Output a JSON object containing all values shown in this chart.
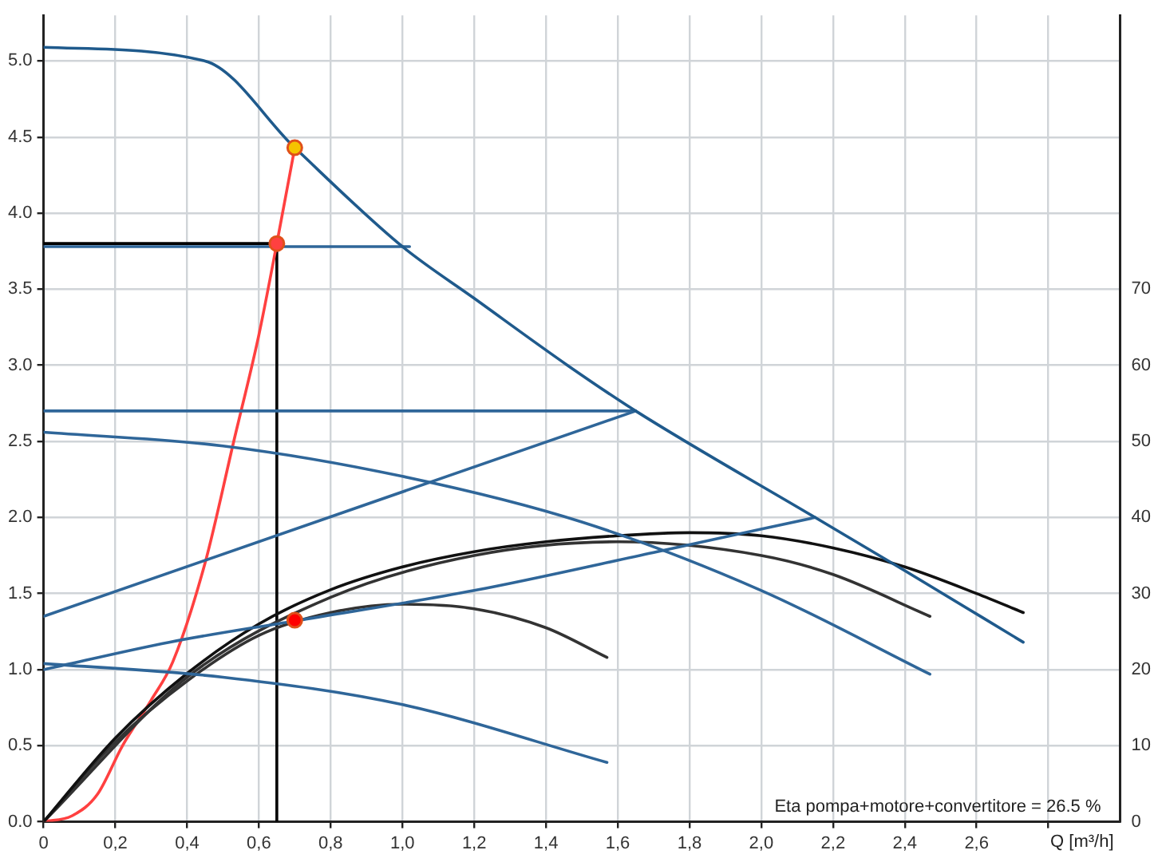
{
  "chart_data": {
    "type": "line",
    "xlabel": "Q [m³/h]",
    "annotations": [
      "Eta pompa+motore+convertitore = 26.5 %"
    ],
    "xlim": [
      0,
      3.0
    ],
    "ylim": [
      0,
      5.3
    ],
    "y2lim": [
      0,
      106
    ],
    "xticks": [
      {
        "value": 0,
        "label": "0"
      },
      {
        "value": 0.2,
        "label": "0,2"
      },
      {
        "value": 0.4,
        "label": "0,4"
      },
      {
        "value": 0.6,
        "label": "0,6"
      },
      {
        "value": 0.8,
        "label": "0,8"
      },
      {
        "value": 1.0,
        "label": "1,0"
      },
      {
        "value": 1.2,
        "label": "1,2"
      },
      {
        "value": 1.4,
        "label": "1,4"
      },
      {
        "value": 1.6,
        "label": "1,6"
      },
      {
        "value": 1.8,
        "label": "1,8"
      },
      {
        "value": 2.0,
        "label": "2,0"
      },
      {
        "value": 2.2,
        "label": "2,2"
      },
      {
        "value": 2.4,
        "label": "2,4"
      },
      {
        "value": 2.6,
        "label": "2,6"
      },
      {
        "value": 2.8,
        "label": null
      }
    ],
    "yticks": [
      {
        "value": 0,
        "label": "0.0"
      },
      0.5,
      {
        "value": 1,
        "label": "1.0"
      },
      1.5,
      {
        "value": 2,
        "label": "2.0"
      },
      2.5,
      {
        "value": 3,
        "label": "3.0"
      },
      3.5,
      {
        "value": 4,
        "label": "4.0"
      },
      4.5,
      {
        "value": 5,
        "label": "5.0"
      }
    ],
    "y2ticks": [
      0,
      10,
      20,
      30,
      40,
      50,
      60,
      70
    ],
    "grid": true,
    "legend": false,
    "series": [
      {
        "color": "#1f5a8c",
        "x": [
          0,
          0.45,
          0.7,
          1.0,
          1.2,
          1.46,
          1.65,
          2.15,
          2.4,
          2.73
        ],
        "values": [
          5.09,
          5.0,
          4.43,
          3.78,
          3.44,
          3.0,
          2.7,
          2.0,
          1.65,
          1.18
        ]
      },
      {
        "color": "#2f6699",
        "x": [
          0,
          1.02
        ],
        "values": [
          3.78,
          3.78
        ]
      },
      {
        "color": "#2f6699",
        "x": [
          0,
          1.65
        ],
        "values": [
          2.7,
          2.7
        ]
      },
      {
        "color": "#2f6699",
        "x": [
          0,
          1.65
        ],
        "values": [
          1.35,
          2.7
        ]
      },
      {
        "color": "#2f6699",
        "x": [
          0,
          0.35,
          0.7,
          1.2,
          1.7,
          2.15
        ],
        "values": [
          1.0,
          1.18,
          1.32,
          1.52,
          1.77,
          2.0
        ]
      },
      {
        "color": "#2f6699",
        "x": [
          0,
          0.5,
          1.0,
          1.5,
          2.0,
          2.47
        ],
        "values": [
          2.56,
          2.47,
          2.27,
          1.97,
          1.52,
          0.97
        ]
      },
      {
        "color": "#2f6699",
        "x": [
          0,
          0.5,
          1.0,
          1.57
        ],
        "values": [
          1.04,
          0.95,
          0.77,
          0.39
        ]
      },
      {
        "color": "#111111",
        "axis": "y2",
        "x": [
          0,
          0.2,
          0.4,
          0.6,
          0.8,
          1.0,
          1.2,
          1.4,
          1.6,
          1.8,
          2.0,
          2.2,
          2.4,
          2.6,
          2.73
        ],
        "values": [
          0,
          11,
          19.5,
          26,
          30.5,
          33.5,
          35.5,
          36.8,
          37.6,
          38,
          37.6,
          36,
          33.5,
          30,
          27.5
        ]
      },
      {
        "color": "#333333",
        "axis": "y2",
        "x": [
          0,
          0.4,
          0.8,
          1.2,
          1.6,
          2.0,
          2.2,
          2.47
        ],
        "values": [
          0,
          19,
          29.5,
          35,
          36.8,
          35,
          32.5,
          27
        ]
      },
      {
        "color": "#333333",
        "axis": "y2",
        "x": [
          0,
          0.2,
          0.4,
          0.6,
          0.8,
          1.0,
          1.2,
          1.4,
          1.57
        ],
        "values": [
          0,
          10.5,
          18.5,
          24.5,
          27.5,
          28.6,
          28,
          25.5,
          21.6
        ]
      },
      {
        "color": "#ff4040",
        "x": [
          0,
          0.08,
          0.15,
          0.22,
          0.3,
          0.36,
          0.45,
          0.53,
          0.6,
          0.65,
          0.7
        ],
        "values": [
          0,
          0.04,
          0.18,
          0.5,
          0.8,
          1.05,
          1.7,
          2.5,
          3.2,
          3.8,
          4.43
        ]
      },
      {
        "color": "#000000",
        "x": [
          0,
          0.65
        ],
        "values": [
          3.8,
          3.8
        ]
      },
      {
        "color": "#000000",
        "x": [
          0.65,
          0.65
        ],
        "values": [
          0,
          3.8
        ]
      },
      {
        "type": "scatter",
        "marker": "circle",
        "color": "#ff4040",
        "x": [
          0.65
        ],
        "values": [
          3.8
        ]
      },
      {
        "type": "scatter",
        "marker": "circle",
        "color": "#f5c400",
        "x": [
          0.7
        ],
        "values": [
          4.43
        ]
      },
      {
        "type": "scatter",
        "marker": "circle",
        "color": "#ff0000",
        "axis": "y2",
        "x": [
          0.7
        ],
        "values": [
          26.5
        ]
      }
    ]
  }
}
